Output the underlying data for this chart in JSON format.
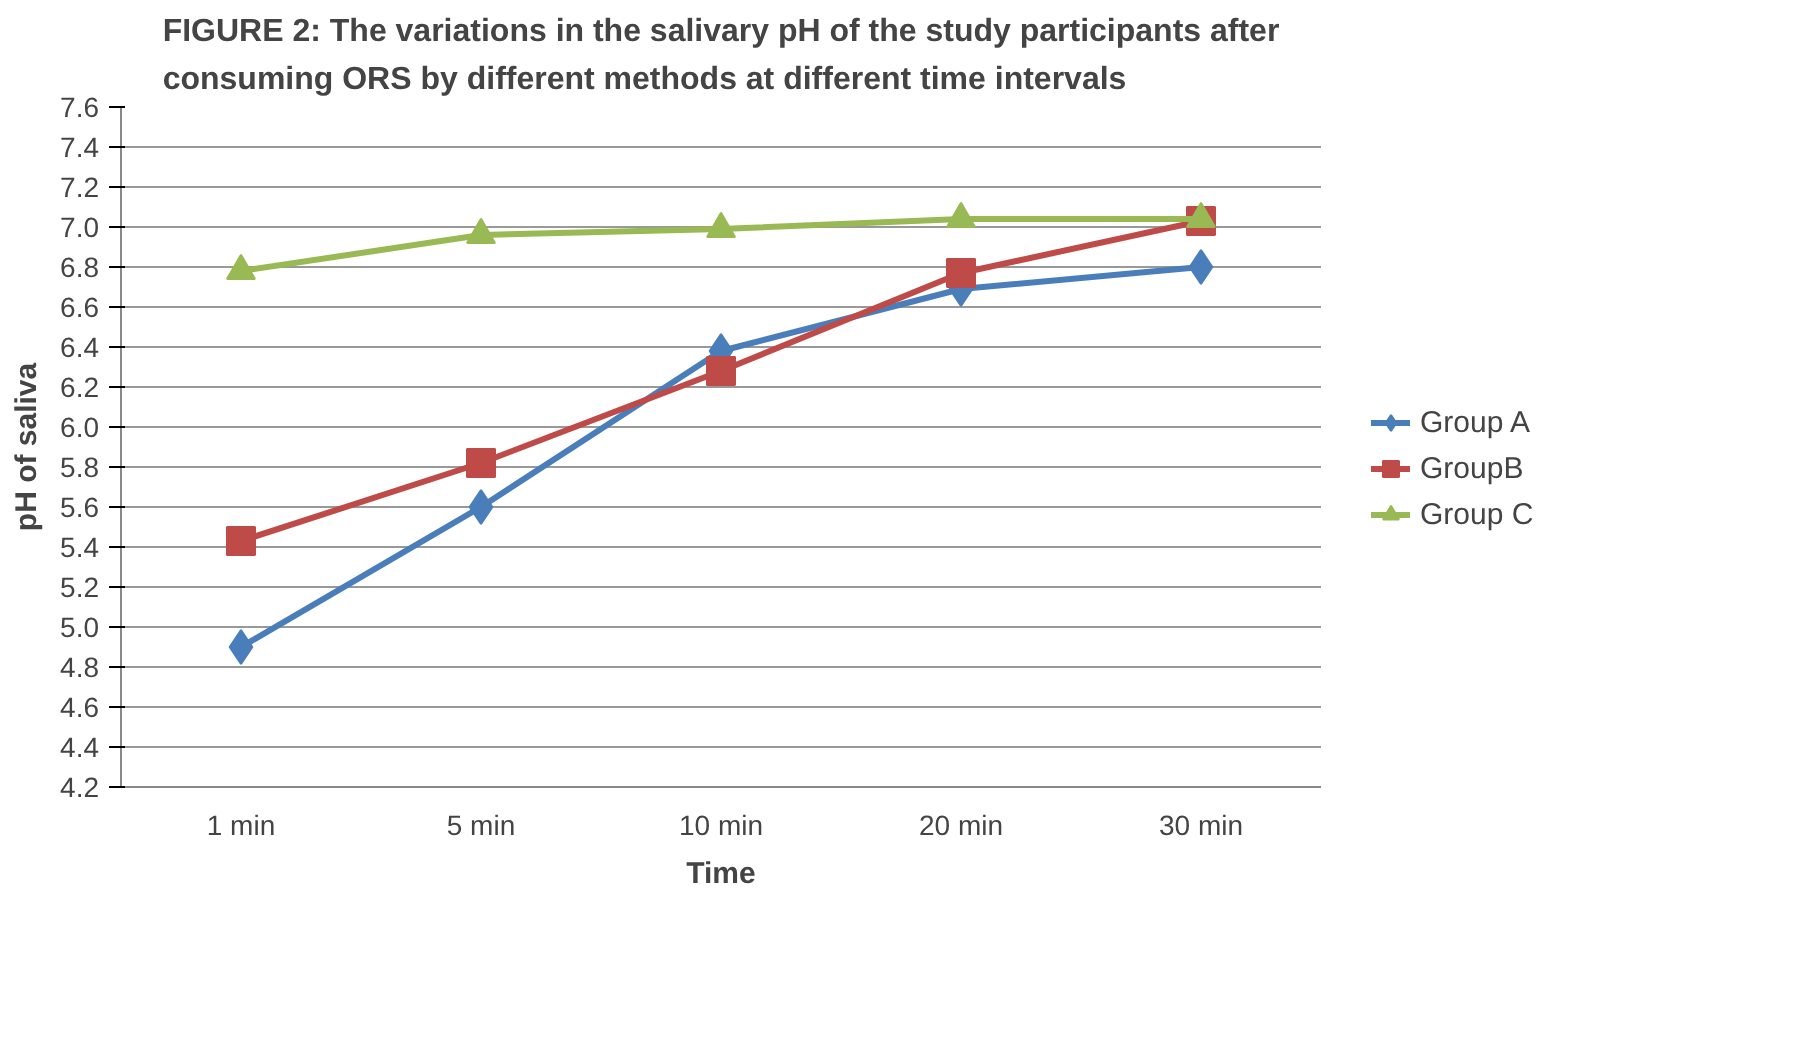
{
  "chart_data": {
    "type": "line",
    "title": "FIGURE 2: The variations in the salivary pH of the study participants after\nconsuming ORS by different methods at different time intervals",
    "xlabel": "Time",
    "ylabel": "pH of saliva",
    "categories": [
      "1 min",
      "5 min",
      "10 min",
      "20 min",
      "30 min"
    ],
    "series": [
      {
        "name": "Group A",
        "color": "#4a7ebb",
        "marker": "diamond",
        "values": [
          4.9,
          5.6,
          6.38,
          6.69,
          6.8
        ]
      },
      {
        "name": "GroupB",
        "color": "#be4b48",
        "marker": "square",
        "values": [
          5.43,
          5.82,
          6.28,
          6.77,
          7.03
        ]
      },
      {
        "name": "Group C",
        "color": "#98b954",
        "marker": "triangle",
        "values": [
          6.78,
          6.96,
          6.99,
          7.04,
          7.04
        ]
      }
    ],
    "ylim": [
      4.2,
      7.6
    ],
    "yticks": [
      {
        "value": 4.2,
        "label": "4.2"
      },
      {
        "value": 4.4,
        "label": "4.4"
      },
      {
        "value": 4.6,
        "label": "4.6"
      },
      {
        "value": 4.8,
        "label": "4.8"
      },
      {
        "value": 5,
        "label": "5.0"
      },
      {
        "value": 5.2,
        "label": "5.2"
      },
      {
        "value": 5.4,
        "label": "5.4"
      },
      {
        "value": 5.6,
        "label": "5.6"
      },
      {
        "value": 5.8,
        "label": "5.8"
      },
      {
        "value": 6,
        "label": "6.0"
      },
      {
        "value": 6.2,
        "label": "6.2"
      },
      {
        "value": 6.4,
        "label": "6.4"
      },
      {
        "value": 6.6,
        "label": "6.6"
      },
      {
        "value": 6.8,
        "label": "6.8"
      },
      {
        "value": 7,
        "label": "7.0"
      },
      {
        "value": 7.2,
        "label": "7.2"
      },
      {
        "value": 7.4,
        "label": "7.4"
      },
      {
        "value": 7.6,
        "label": "7.6"
      }
    ],
    "grid": "y",
    "legend": "right"
  }
}
